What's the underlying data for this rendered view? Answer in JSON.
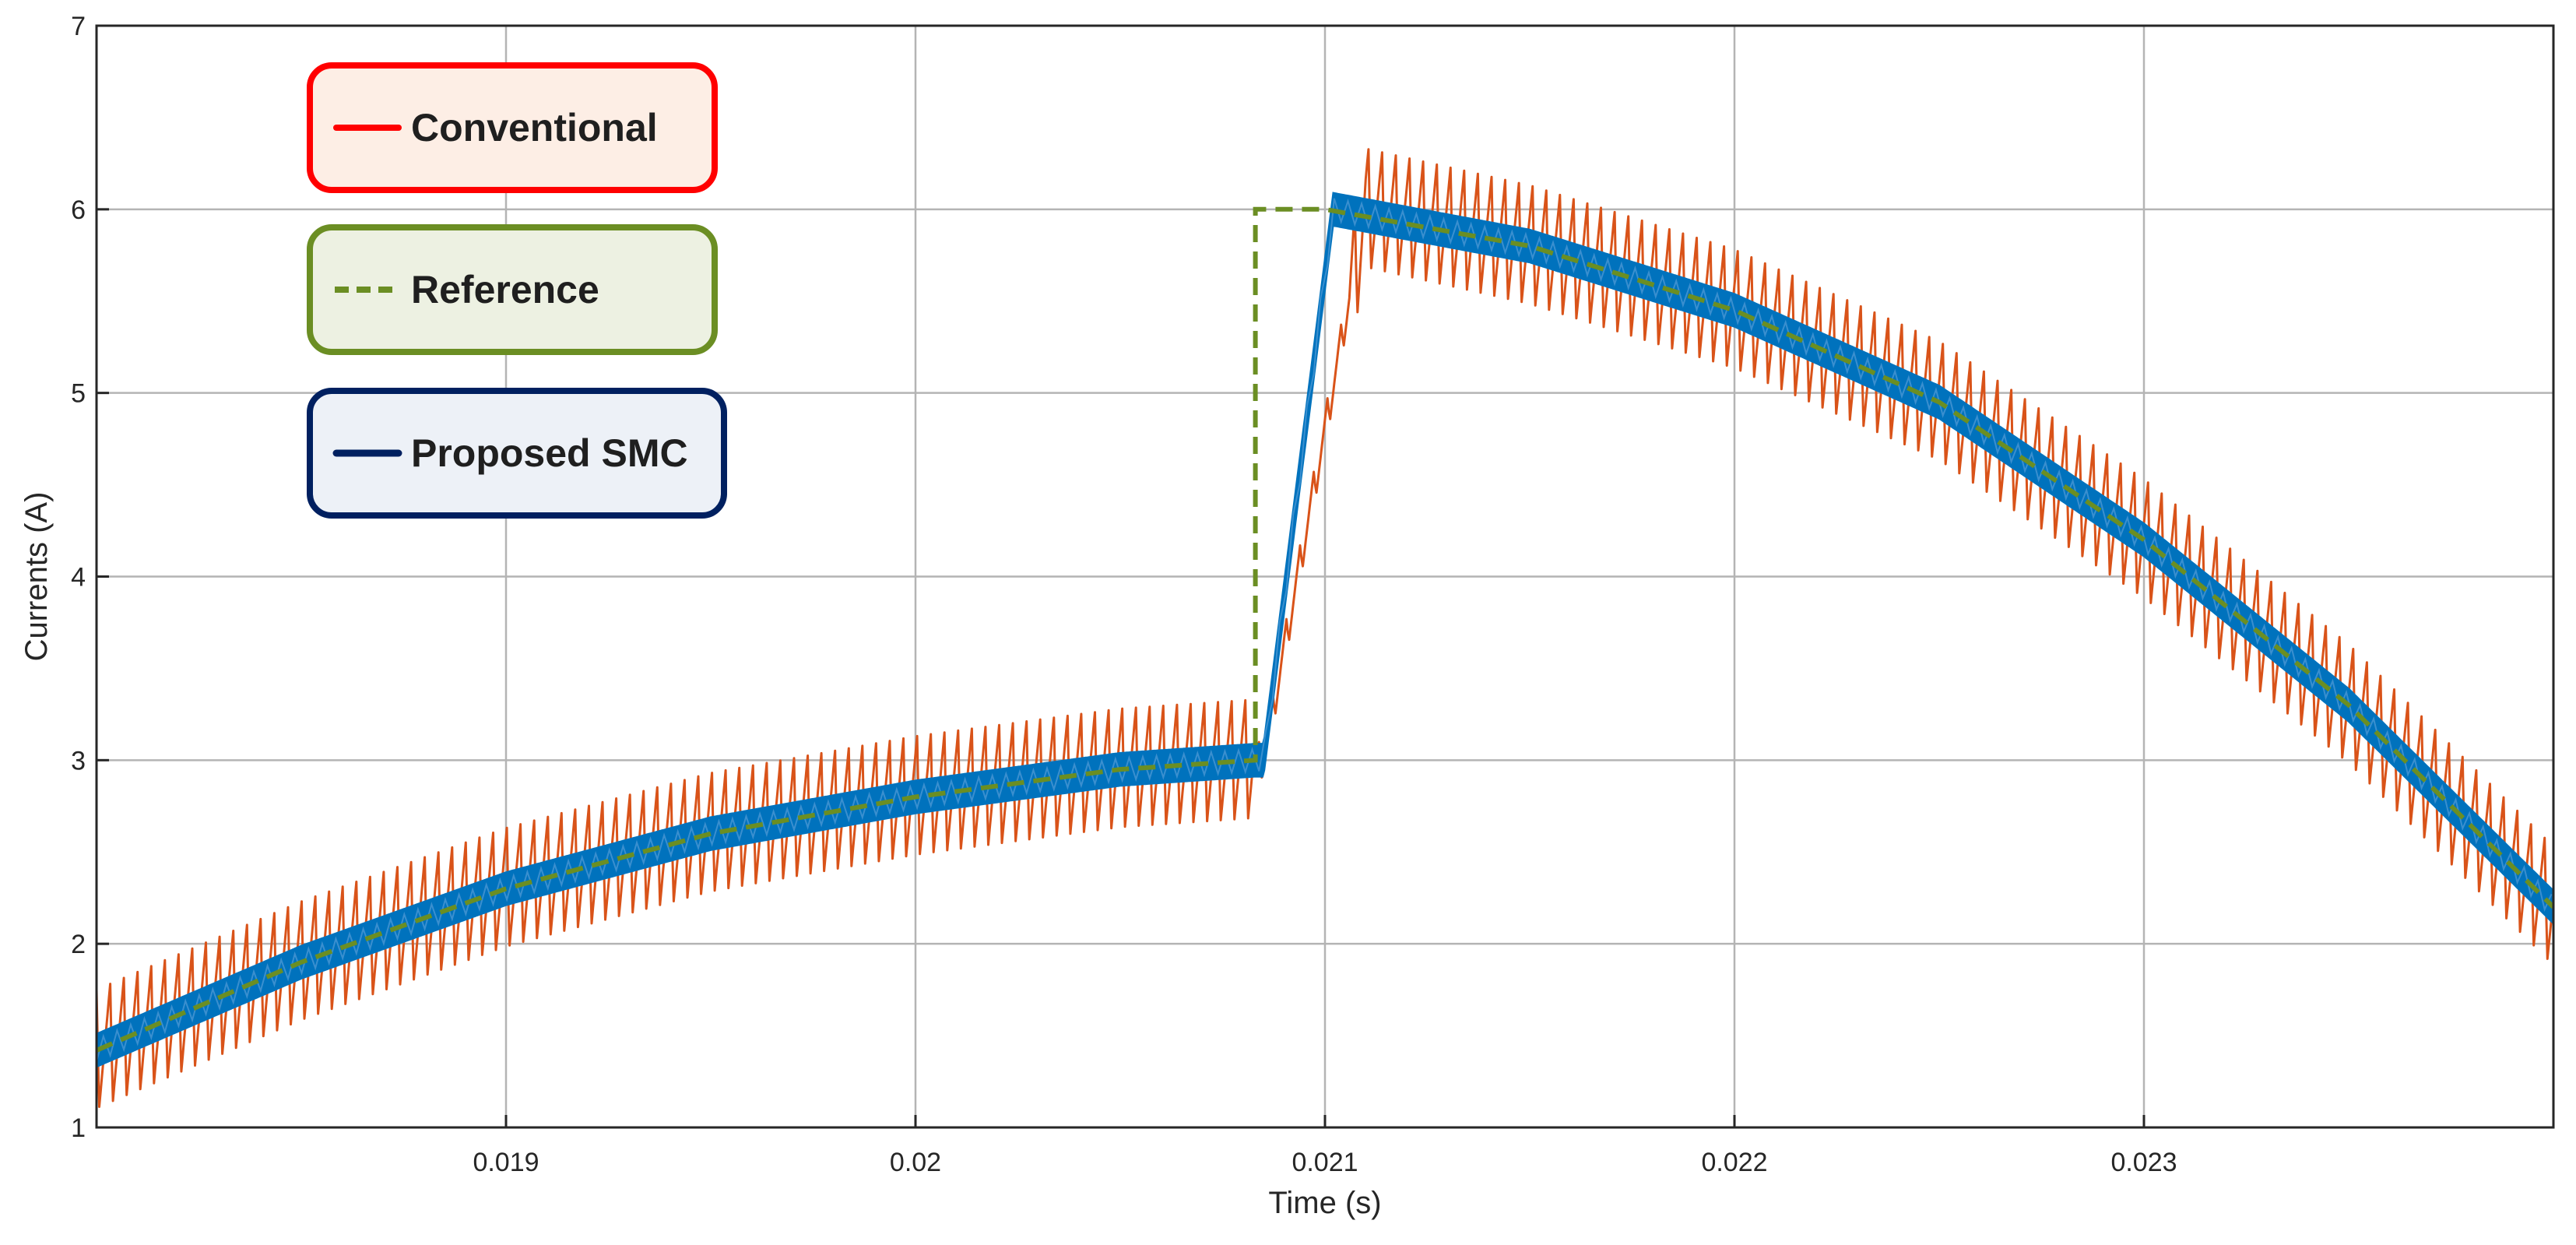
{
  "chart_data": {
    "type": "line",
    "xlabel": "Time (s)",
    "ylabel": "Currents (A)",
    "xlim": [
      0.018,
      0.024
    ],
    "ylim": [
      1,
      7
    ],
    "xticks": [
      0.019,
      0.02,
      0.021,
      0.022,
      0.023
    ],
    "xtick_labels": [
      "0.019",
      "0.02",
      "0.021",
      "0.022",
      "0.023"
    ],
    "yticks": [
      1,
      2,
      3,
      4,
      5,
      6,
      7
    ],
    "ytick_labels": [
      "1",
      "2",
      "3",
      "4",
      "5",
      "6",
      "7"
    ],
    "grid": true,
    "legend_placement": "top-left",
    "series": [
      {
        "name": "Conventional",
        "color": "#d95319",
        "legend_color": "#ff0000",
        "legend_bg": "#fdeee5",
        "style": "solid",
        "ripple_amplitude": 0.33,
        "x": [
          0.018,
          0.0185,
          0.019,
          0.0195,
          0.02,
          0.0205,
          0.02083,
          0.02085,
          0.0211,
          0.0215,
          0.022,
          0.0225,
          0.023,
          0.0235,
          0.024
        ],
        "y": [
          1.42,
          1.9,
          2.3,
          2.6,
          2.8,
          2.95,
          3.0,
          3.0,
          6.0,
          5.8,
          5.45,
          4.95,
          4.2,
          3.3,
          2.2
        ]
      },
      {
        "name": "Reference",
        "color": "#6b8e23",
        "legend_color": "#6b8e23",
        "legend_bg": "#edf1e2",
        "style": "dashed",
        "x": [
          0.018,
          0.0185,
          0.019,
          0.0195,
          0.02,
          0.0205,
          0.02083,
          0.02083,
          0.021,
          0.0215,
          0.022,
          0.0225,
          0.023,
          0.0235,
          0.024
        ],
        "y": [
          1.42,
          1.9,
          2.3,
          2.6,
          2.8,
          2.95,
          3.0,
          6.0,
          6.0,
          5.8,
          5.45,
          4.95,
          4.2,
          3.3,
          2.2
        ]
      },
      {
        "name": "Proposed SMC",
        "color": "#0072bd",
        "legend_color": "#002060",
        "legend_bg": "#edf1f7",
        "style": "solid",
        "band_amplitude": 0.09,
        "x": [
          0.018,
          0.0185,
          0.019,
          0.0195,
          0.02,
          0.0205,
          0.02083,
          0.02085,
          0.02102,
          0.0215,
          0.022,
          0.0225,
          0.023,
          0.0235,
          0.024
        ],
        "y": [
          1.42,
          1.9,
          2.3,
          2.6,
          2.8,
          2.95,
          3.0,
          3.0,
          6.0,
          5.8,
          5.45,
          4.95,
          4.2,
          3.3,
          2.2
        ]
      }
    ]
  }
}
